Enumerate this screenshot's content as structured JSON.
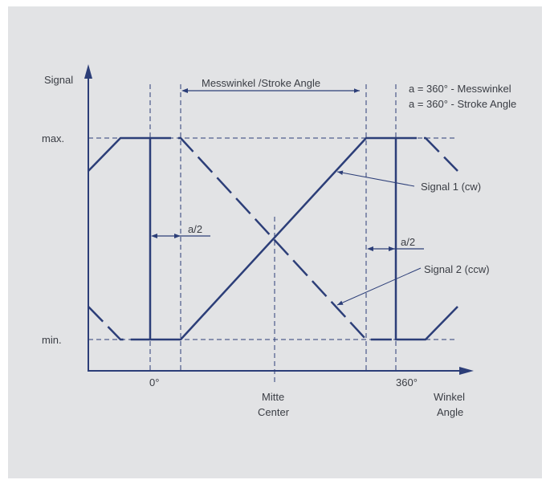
{
  "colors": {
    "line": "#2c3e78",
    "text": "#3a3d44",
    "background": "#e2e3e5"
  },
  "axes": {
    "y_label": "Signal",
    "x_label_de": "Winkel",
    "x_label_en": "Angle"
  },
  "levels": {
    "max": "max.",
    "min": "min."
  },
  "x_ticks": {
    "zero": "0°",
    "full": "360°",
    "center_de": "Mitte",
    "center_en": "Center"
  },
  "dimensions": {
    "stroke_angle": "Messwinkel /Stroke Angle",
    "a_half_left": "a/2",
    "a_half_right": "a/2"
  },
  "legend": {
    "line1": "a = 360° - Messwinkel",
    "line2": "a = 360° - Stroke Angle"
  },
  "signals": {
    "signal1": "Signal 1 (cw)",
    "signal2": "Signal 2 (ccw)"
  }
}
